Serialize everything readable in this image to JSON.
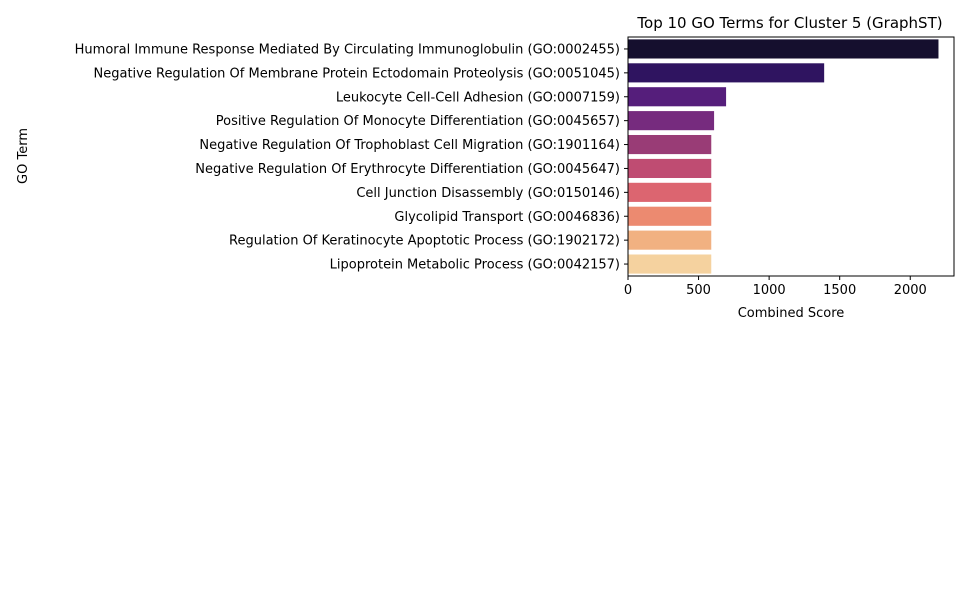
{
  "chart_data": {
    "type": "bar",
    "orientation": "horizontal",
    "title": "Top 10 GO Terms for Cluster 5 (GraphST)",
    "xlabel": "Combined Score",
    "ylabel": "GO Term",
    "xlim": [
      0,
      2310
    ],
    "xticks": [
      0,
      500,
      1000,
      1500,
      2000
    ],
    "grid": false,
    "legend": "none",
    "categories": [
      "Humoral Immune Response Mediated By Circulating Immunoglobulin (GO:0002455)",
      "Negative Regulation Of Membrane Protein Ectodomain Proteolysis (GO:0051045)",
      "Leukocyte Cell-Cell Adhesion (GO:0007159)",
      "Positive Regulation Of Monocyte Differentiation (GO:0045657)",
      "Negative Regulation Of Trophoblast Cell Migration (GO:1901164)",
      "Negative Regulation Of Erythrocyte Differentiation (GO:0045647)",
      "Cell Junction Disassembly (GO:0150146)",
      "Glycolipid Transport (GO:0046836)",
      "Regulation Of Keratinocyte Apoptotic Process (GO:1902172)",
      "Lipoprotein Metabolic Process (GO:0042157)"
    ],
    "values": [
      2200,
      1390,
      695,
      610,
      590,
      590,
      590,
      590,
      590,
      590
    ],
    "colors": [
      "#150f2e",
      "#2f1460",
      "#551e7b",
      "#762b7e",
      "#993c76",
      "#bf4c72",
      "#dc6570",
      "#ec8a70",
      "#f1b181",
      "#f5d29f"
    ]
  }
}
